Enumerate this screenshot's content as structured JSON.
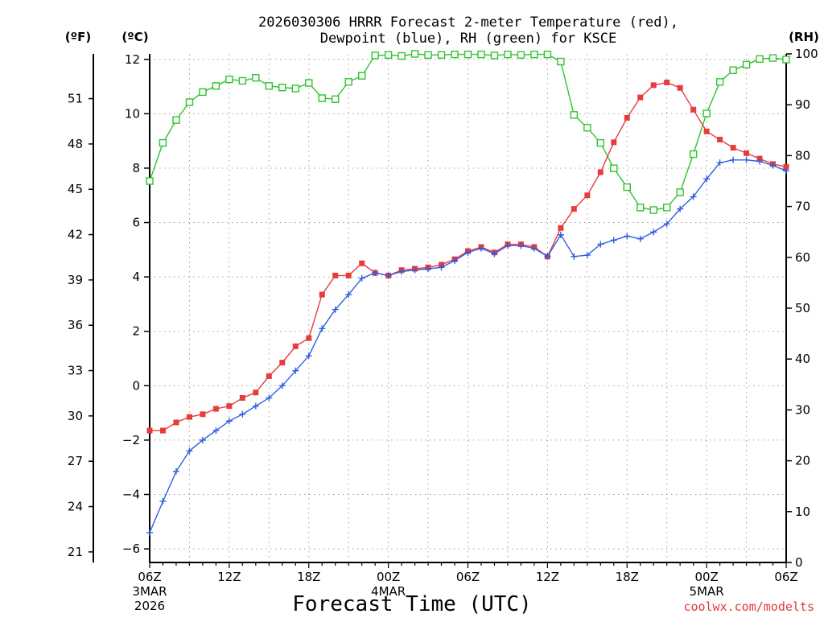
{
  "chart_data": {
    "type": "line",
    "title_line1": "2026030306 HRRR Forecast 2-meter Temperature (red),",
    "title_line2": "Dewpoint (blue), RH (green) for KSCE",
    "xlabel": "Forecast Time (UTC)",
    "credit": "coolwx.com/modelts",
    "unit_f": "(ºF)",
    "unit_c": "(ºC)",
    "unit_rh": "(RH)",
    "x_range_hours": [
      0,
      48
    ],
    "ylim_c": [
      -6.5,
      12.2
    ],
    "ylim_rh": [
      0,
      100
    ],
    "yticks_c": [
      -6,
      -4,
      -2,
      0,
      2,
      4,
      6,
      8,
      10,
      12
    ],
    "yticks_f": [
      21,
      24,
      27,
      30,
      33,
      36,
      39,
      42,
      45,
      48,
      51
    ],
    "yticks_rh": [
      0,
      10,
      20,
      30,
      40,
      50,
      60,
      70,
      80,
      90,
      100
    ],
    "xticks": [
      {
        "hour": 0,
        "label": "06Z",
        "sub1": "3MAR",
        "sub2": "2026"
      },
      {
        "hour": 6,
        "label": "12Z",
        "sub1": "",
        "sub2": ""
      },
      {
        "hour": 12,
        "label": "18Z",
        "sub1": "",
        "sub2": ""
      },
      {
        "hour": 18,
        "label": "00Z",
        "sub1": "4MAR",
        "sub2": ""
      },
      {
        "hour": 24,
        "label": "06Z",
        "sub1": "",
        "sub2": ""
      },
      {
        "hour": 30,
        "label": "12Z",
        "sub1": "",
        "sub2": ""
      },
      {
        "hour": 36,
        "label": "18Z",
        "sub1": "",
        "sub2": ""
      },
      {
        "hour": 42,
        "label": "00Z",
        "sub1": "5MAR",
        "sub2": ""
      },
      {
        "hour": 48,
        "label": "06Z",
        "sub1": "",
        "sub2": ""
      }
    ],
    "series": [
      {
        "name": "2-meter Temperature",
        "units": "C",
        "color": "#e83c3c",
        "marker": "filled-square",
        "x": [
          0,
          1,
          2,
          3,
          4,
          5,
          6,
          7,
          8,
          9,
          10,
          11,
          12,
          13,
          14,
          15,
          16,
          17,
          18,
          19,
          20,
          21,
          22,
          23,
          24,
          25,
          26,
          27,
          28,
          29,
          30,
          31,
          32,
          33,
          34,
          35,
          36,
          37,
          38,
          39,
          40,
          41,
          42,
          43,
          44,
          45,
          46,
          47,
          48
        ],
        "values": [
          -1.65,
          -1.65,
          -1.35,
          -1.15,
          -1.05,
          -0.85,
          -0.75,
          -0.45,
          -0.25,
          0.35,
          0.85,
          1.45,
          1.75,
          3.35,
          4.05,
          4.05,
          4.5,
          4.15,
          4.05,
          4.25,
          4.3,
          4.35,
          4.45,
          4.65,
          4.95,
          5.1,
          4.9,
          5.2,
          5.2,
          5.1,
          4.75,
          5.8,
          6.5,
          7.0,
          7.85,
          8.95,
          9.85,
          10.6,
          11.05,
          11.15,
          10.95,
          10.15,
          9.35,
          9.05,
          8.75,
          8.55,
          8.35,
          8.15,
          8.05
        ]
      },
      {
        "name": "Dewpoint",
        "units": "C",
        "color": "#2f5ee0",
        "marker": "plus",
        "x": [
          0,
          1,
          2,
          3,
          4,
          5,
          6,
          7,
          8,
          9,
          10,
          11,
          12,
          13,
          14,
          15,
          16,
          17,
          18,
          19,
          20,
          21,
          22,
          23,
          24,
          25,
          26,
          27,
          28,
          29,
          30,
          31,
          32,
          33,
          34,
          35,
          36,
          37,
          38,
          39,
          40,
          41,
          42,
          43,
          44,
          45,
          46,
          47,
          48
        ],
        "values": [
          -5.4,
          -4.25,
          -3.15,
          -2.4,
          -2.0,
          -1.65,
          -1.3,
          -1.05,
          -0.75,
          -0.45,
          0.0,
          0.55,
          1.1,
          2.1,
          2.8,
          3.35,
          3.95,
          4.15,
          4.05,
          4.2,
          4.25,
          4.3,
          4.35,
          4.6,
          4.9,
          5.05,
          4.85,
          5.15,
          5.15,
          5.05,
          4.75,
          5.55,
          4.75,
          4.8,
          5.2,
          5.35,
          5.5,
          5.4,
          5.65,
          5.95,
          6.5,
          6.95,
          7.6,
          8.2,
          8.3,
          8.3,
          8.25,
          8.1,
          7.9
        ]
      },
      {
        "name": "RH",
        "units": "%",
        "color": "#2fc42f",
        "marker": "open-square",
        "x": [
          0,
          1,
          2,
          3,
          4,
          5,
          6,
          7,
          8,
          9,
          10,
          11,
          12,
          13,
          14,
          15,
          16,
          17,
          18,
          19,
          20,
          21,
          22,
          23,
          24,
          25,
          26,
          27,
          28,
          29,
          30,
          31,
          32,
          33,
          34,
          35,
          36,
          37,
          38,
          39,
          40,
          41,
          42,
          43,
          44,
          45,
          46,
          47,
          48
        ],
        "values": [
          75,
          82.5,
          87,
          90.5,
          92.5,
          93.7,
          95,
          94.7,
          95.3,
          93.7,
          93.4,
          93.2,
          94.3,
          91.3,
          91.1,
          94.5,
          95.7,
          99.7,
          99.8,
          99.6,
          100,
          99.8,
          99.8,
          99.9,
          99.9,
          99.9,
          99.7,
          99.9,
          99.8,
          99.9,
          99.9,
          98.5,
          88,
          85.5,
          82.5,
          77.5,
          73.8,
          69.8,
          69.3,
          69.8,
          72.8,
          80.3,
          88.3,
          94.5,
          96.8,
          97.9,
          99,
          99.2,
          98.9
        ]
      }
    ]
  }
}
